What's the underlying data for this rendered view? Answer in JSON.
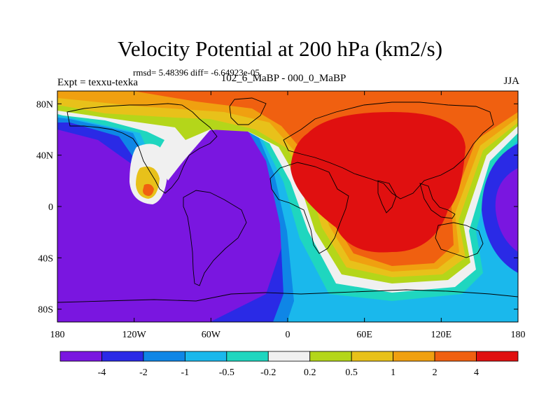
{
  "chart_data": {
    "type": "heatmap",
    "title": "Velocity Potential at 200 hPa (km2/s)",
    "stats": "rmsd= 5.48396 diff= -6.64923e-05",
    "left_subtitle": "Expt = texxu-texka",
    "center_subtitle": "102_6_MaBP - 000_0_MaBP",
    "right_subtitle": "JJA",
    "x_axis": {
      "range": [
        -180,
        180
      ],
      "ticks": [
        {
          "value": -180,
          "label": "180"
        },
        {
          "value": -120,
          "label": "120W"
        },
        {
          "value": -60,
          "label": "60W"
        },
        {
          "value": 0,
          "label": "0"
        },
        {
          "value": 60,
          "label": "60E"
        },
        {
          "value": 120,
          "label": "120E"
        },
        {
          "value": 180,
          "label": "180"
        }
      ]
    },
    "y_axis": {
      "range": [
        -90,
        90
      ],
      "ticks": [
        {
          "value": 80,
          "label": "80N"
        },
        {
          "value": 40,
          "label": "40N"
        },
        {
          "value": 0,
          "label": "0"
        },
        {
          "value": -40,
          "label": "40S"
        },
        {
          "value": -80,
          "label": "80S"
        }
      ]
    },
    "colorbar": {
      "levels": [
        "-4",
        "-2",
        "-1",
        "-0.5",
        "-0.2",
        "0.2",
        "0.5",
        "1",
        "2",
        "4"
      ],
      "colors": [
        "#7a16e0",
        "#2a2ae6",
        "#0f86e6",
        "#1ab8ec",
        "#1fd6bf",
        "#f0f0f0",
        "#b4d61a",
        "#e8c11a",
        "#f0a010",
        "#f06010",
        "#e01010"
      ]
    },
    "field": {
      "description_fill_classes": [
        "-4 or less over Pacific and central/South America and eastern Pacific",
        "4 or more over Africa, Eurasia and Indian Ocean"
      ]
    }
  }
}
